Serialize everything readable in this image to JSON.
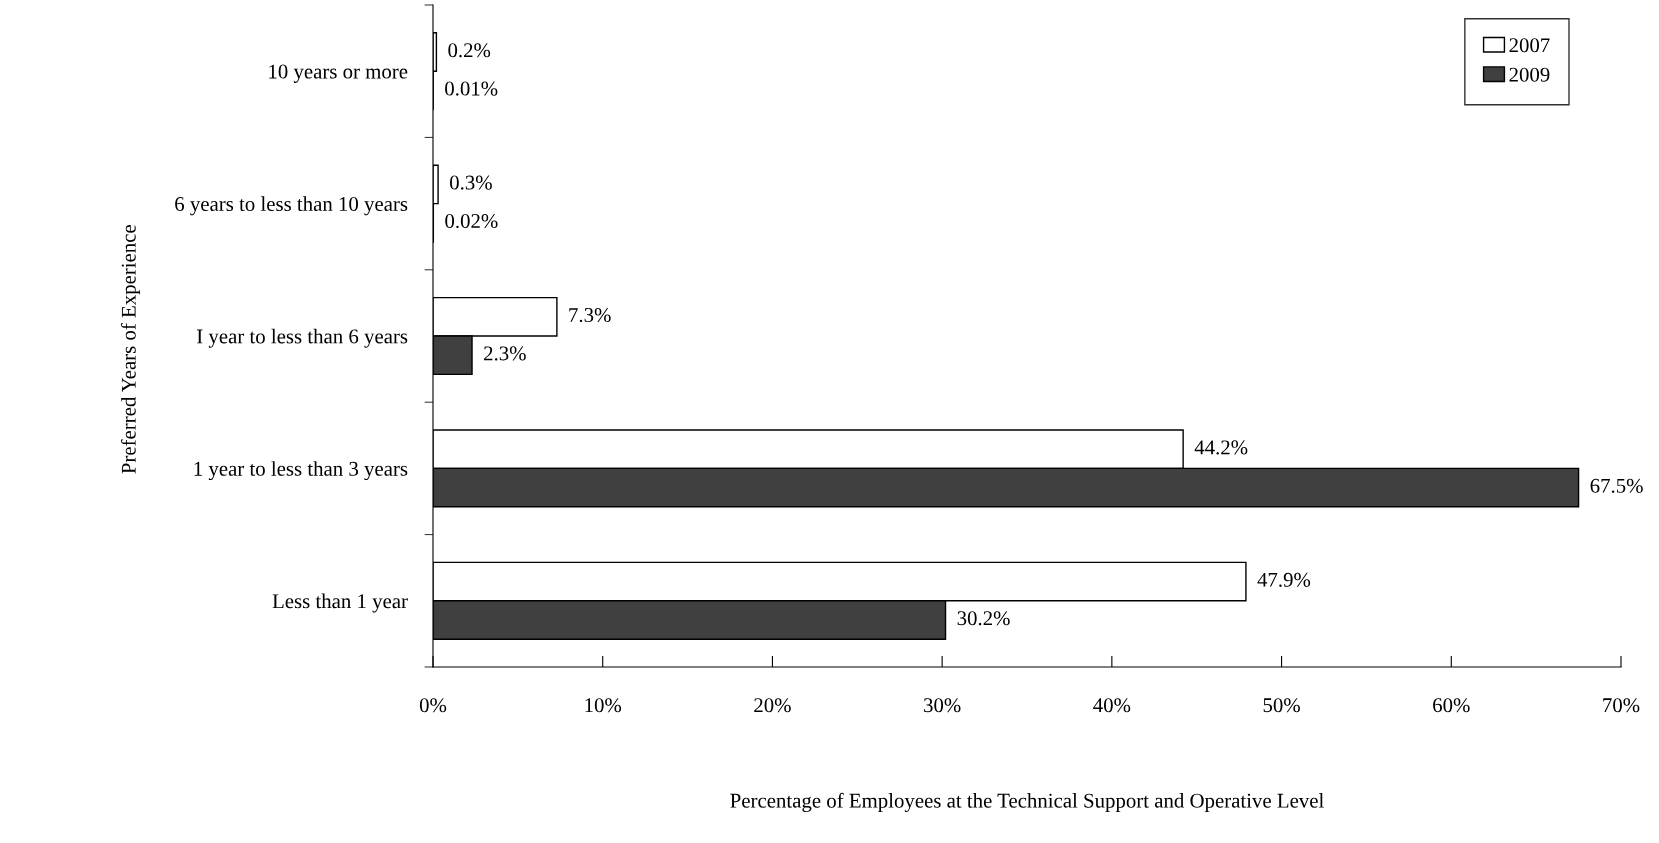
{
  "chart_data": {
    "type": "bar",
    "orientation": "horizontal",
    "ylabel": "Preferred Years of Experience",
    "xlabel": "Percentage of Employees at the Technical Support and Operative Level",
    "categories": [
      "10 years or more",
      "6 years to less than 10 years",
      "I year to less than 6 years",
      "1 year to less than 3 years",
      "Less than 1 year"
    ],
    "series": [
      {
        "name": "2007",
        "color": "#ffffff",
        "values": [
          0.2,
          0.3,
          7.3,
          44.2,
          47.9
        ],
        "value_labels": [
          "0.2%",
          "0.3%",
          "7.3%",
          "44.2%",
          "47.9%"
        ]
      },
      {
        "name": "2009",
        "color": "#404040",
        "values": [
          0.01,
          0.02,
          2.3,
          67.5,
          30.2
        ],
        "value_labels": [
          "0.01%",
          "0.02%",
          "2.3%",
          "67.5%",
          "30.2%"
        ]
      }
    ],
    "xlim": [
      0,
      70
    ],
    "xticks": [
      {
        "value": 0,
        "label": "0%"
      },
      {
        "value": 10,
        "label": "10%"
      },
      {
        "value": 20,
        "label": "20%"
      },
      {
        "value": 30,
        "label": "30%"
      },
      {
        "value": 40,
        "label": "40%"
      },
      {
        "value": 50,
        "label": "50%"
      },
      {
        "value": 60,
        "label": "60%"
      },
      {
        "value": 70,
        "label": "70%"
      }
    ],
    "legend": "top right",
    "grid": false
  }
}
